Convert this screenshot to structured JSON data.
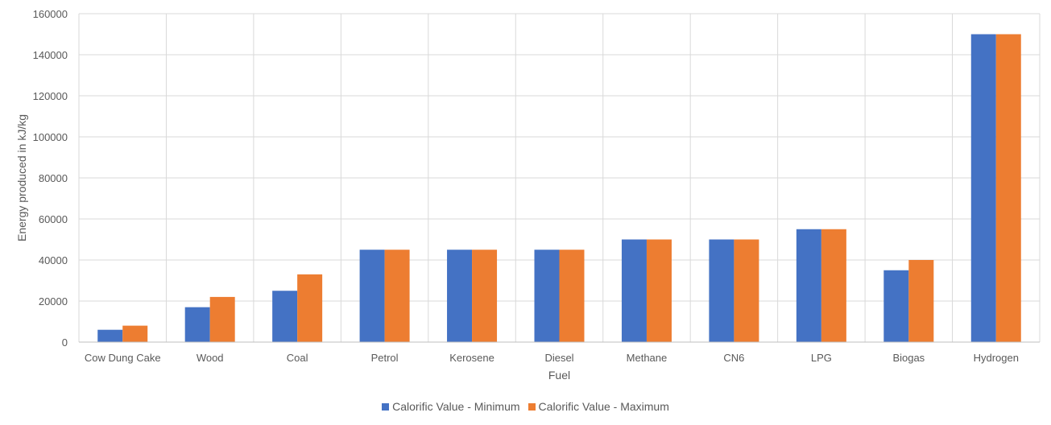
{
  "chart_data": {
    "type": "bar",
    "categories": [
      "Cow Dung Cake",
      "Wood",
      "Coal",
      "Petrol",
      "Kerosene",
      "Diesel",
      "Methane",
      "CN6",
      "LPG",
      "Biogas",
      "Hydrogen"
    ],
    "series": [
      {
        "name": "Calorific Value - Minimum",
        "color": "#4472C4",
        "values": [
          6000,
          17000,
          25000,
          45000,
          45000,
          45000,
          50000,
          50000,
          55000,
          35000,
          150000
        ]
      },
      {
        "name": "Calorific Value - Maximum",
        "color": "#ED7D31",
        "values": [
          8000,
          22000,
          33000,
          45000,
          45000,
          45000,
          50000,
          50000,
          55000,
          40000,
          150000
        ]
      }
    ],
    "xlabel": "Fuel",
    "ylabel": "Energy produced in kJ/kg",
    "ylim": [
      0,
      160000
    ],
    "yticks": [
      0,
      20000,
      40000,
      60000,
      80000,
      100000,
      120000,
      140000,
      160000
    ],
    "grid": true,
    "legend_position": "bottom"
  }
}
